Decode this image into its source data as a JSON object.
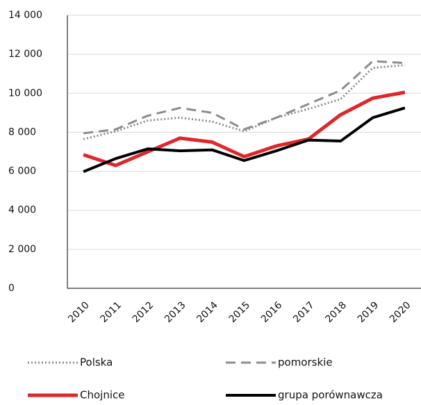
{
  "chart_data": {
    "type": "line",
    "categories": [
      "2010",
      "2011",
      "2012",
      "2013",
      "2014",
      "2015",
      "2016",
      "2017",
      "2018",
      "2019",
      "2020"
    ],
    "series": [
      {
        "name": "Polska",
        "color": "#8c8c8c",
        "style": "dotted",
        "values": [
          7650,
          8050,
          8600,
          8750,
          8550,
          8050,
          8750,
          9200,
          9700,
          11300,
          11450
        ]
      },
      {
        "name": "pomorskie",
        "color": "#8c8c8c",
        "style": "dashed",
        "values": [
          7950,
          8150,
          8850,
          9250,
          9000,
          8150,
          8750,
          9450,
          10150,
          11650,
          11550
        ]
      },
      {
        "name": "Chojnice",
        "color": "#e0262b",
        "style": "solid",
        "values": [
          6850,
          6300,
          7000,
          7700,
          7500,
          6750,
          7300,
          7650,
          8900,
          9750,
          10050
        ]
      },
      {
        "name": "grupa porównawcza",
        "color": "#000000",
        "style": "solid",
        "values": [
          5980,
          6650,
          7150,
          7050,
          7100,
          6550,
          7050,
          7600,
          7550,
          8750,
          9250
        ]
      }
    ],
    "ylim": [
      0,
      14000
    ],
    "yticks": [
      {
        "value": 0,
        "label": "0"
      },
      {
        "value": 2000,
        "label": "2 000"
      },
      {
        "value": 4000,
        "label": "4 000"
      },
      {
        "value": 6000,
        "label": "6 000"
      },
      {
        "value": 8000,
        "label": "8 000"
      },
      {
        "value": 10000,
        "label": "10 000"
      },
      {
        "value": 12000,
        "label": "12 000"
      },
      {
        "value": 14000,
        "label": "14 000"
      }
    ],
    "grid": true,
    "legend": "bottom"
  }
}
